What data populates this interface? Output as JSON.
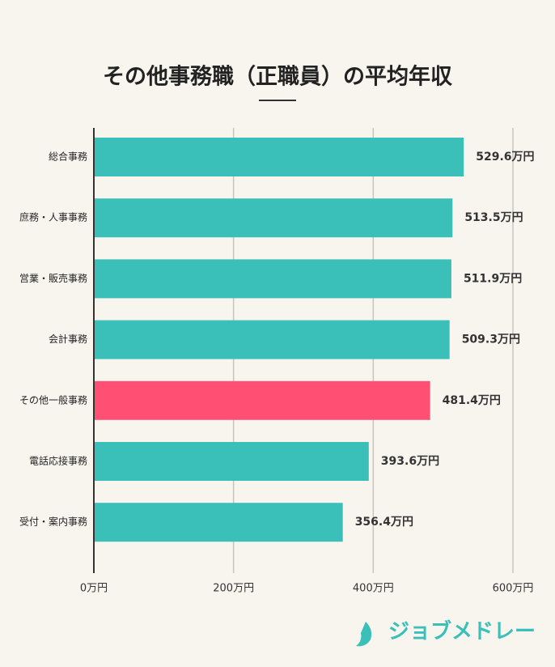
{
  "chart_data": {
    "type": "barh",
    "title": "その他事務職（正職員）の平均年収",
    "categories": [
      "総合事務",
      "庶務・人事事務",
      "営業・販売事務",
      "会計事務",
      "その他一般事務",
      "電話応接事務",
      "受付・案内事務"
    ],
    "values": [
      529.6,
      513.5,
      511.9,
      509.3,
      481.4,
      393.6,
      356.4
    ],
    "value_labels": [
      "529.6万円",
      "513.5万円",
      "511.9万円",
      "509.3万円",
      "481.4万円",
      "393.6万円",
      "356.4万円"
    ],
    "colors": [
      "#3bbfb9",
      "#3bbfb9",
      "#3bbfb9",
      "#3bbfb9",
      "#ff5073",
      "#3bbfb9",
      "#3bbfb9"
    ],
    "xlim": [
      0,
      600
    ],
    "xticks": [
      {
        "value": 0,
        "label": "0万円"
      },
      {
        "value": 200,
        "label": "200万円"
      },
      {
        "value": 400,
        "label": "400万円"
      },
      {
        "value": 600,
        "label": "600万円"
      }
    ],
    "grid": true
  },
  "brand": "ジョブメドレー"
}
